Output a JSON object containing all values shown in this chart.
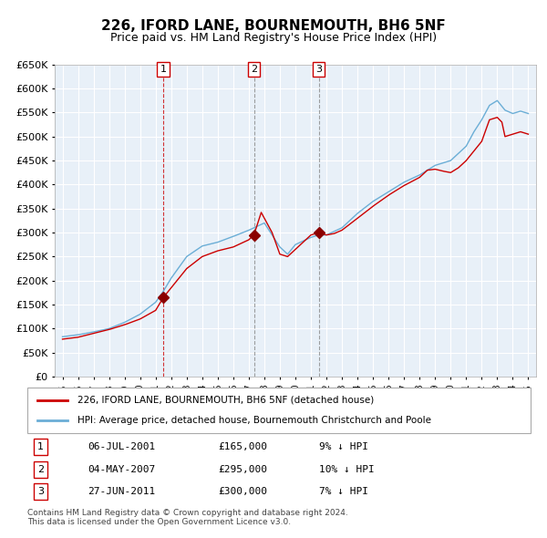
{
  "title": "226, IFORD LANE, BOURNEMOUTH, BH6 5NF",
  "subtitle": "Price paid vs. HM Land Registry's House Price Index (HPI)",
  "legend_line1": "226, IFORD LANE, BOURNEMOUTH, BH6 5NF (detached house)",
  "legend_line2": "HPI: Average price, detached house, Bournemouth Christchurch and Poole",
  "footnote1": "Contains HM Land Registry data © Crown copyright and database right 2024.",
  "footnote2": "This data is licensed under the Open Government Licence v3.0.",
  "transactions": [
    {
      "num": 1,
      "date": "06-JUL-2001",
      "price": 165000,
      "pct": "9%",
      "dir": "↓",
      "year_x": 2001.5
    },
    {
      "num": 2,
      "date": "04-MAY-2007",
      "price": 295000,
      "pct": "10%",
      "dir": "↓",
      "year_x": 2007.33
    },
    {
      "num": 3,
      "date": "27-JUN-2011",
      "price": 300000,
      "pct": "7%",
      "dir": "↓",
      "year_x": 2011.5
    }
  ],
  "hpi_color": "#6baed6",
  "price_color": "#cc0000",
  "bg_color": "#e8f0f8",
  "grid_color": "#ffffff",
  "vline1_color": "#cc0000",
  "vline23_color": "#888888",
  "ylim": [
    0,
    650000
  ],
  "yticks": [
    0,
    50000,
    100000,
    150000,
    200000,
    250000,
    300000,
    350000,
    400000,
    450000,
    500000,
    550000,
    600000,
    650000
  ],
  "xlim_start": 1994.5,
  "xlim_end": 2025.5
}
